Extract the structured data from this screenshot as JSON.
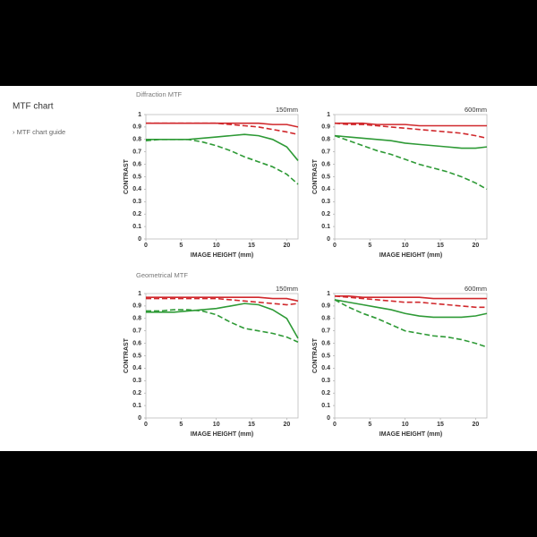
{
  "page": {
    "title": "MTF chart",
    "link": "› MTF chart guide",
    "sections": [
      "Diffraction MTF",
      "Geometrical MTF"
    ]
  },
  "chart_data": [
    {
      "type": "line",
      "title": "150mm",
      "xlabel": "IMAGE HEIGHT (mm)",
      "ylabel": "CONTRAST",
      "x": [
        0,
        2,
        4,
        6,
        8,
        10,
        12,
        14,
        16,
        18,
        20,
        21.6
      ],
      "xlim": [
        0,
        21.6
      ],
      "xticks": [
        0,
        5,
        10,
        15,
        20
      ],
      "ylim": [
        0,
        1
      ],
      "yticks": [
        0,
        0.1,
        0.2,
        0.3,
        0.4,
        0.5,
        0.6,
        0.7,
        0.8,
        0.9,
        1
      ],
      "grid": false,
      "series": [
        {
          "color": "#d0282c",
          "style": "solid",
          "values": [
            0.93,
            0.93,
            0.93,
            0.93,
            0.93,
            0.93,
            0.93,
            0.93,
            0.93,
            0.92,
            0.92,
            0.9
          ]
        },
        {
          "color": "#d0282c",
          "style": "dashed",
          "values": [
            0.93,
            0.93,
            0.93,
            0.93,
            0.93,
            0.93,
            0.92,
            0.91,
            0.9,
            0.88,
            0.86,
            0.84
          ]
        },
        {
          "color": "#2e9a36",
          "style": "solid",
          "values": [
            0.8,
            0.8,
            0.8,
            0.8,
            0.81,
            0.82,
            0.83,
            0.84,
            0.83,
            0.8,
            0.74,
            0.63
          ]
        },
        {
          "color": "#2e9a36",
          "style": "dashed",
          "values": [
            0.79,
            0.8,
            0.8,
            0.8,
            0.78,
            0.75,
            0.71,
            0.66,
            0.62,
            0.58,
            0.52,
            0.44
          ]
        }
      ]
    },
    {
      "type": "line",
      "title": "600mm",
      "xlabel": "IMAGE HEIGHT (mm)",
      "ylabel": "CONTRAST",
      "x": [
        0,
        2,
        4,
        6,
        8,
        10,
        12,
        14,
        16,
        18,
        20,
        21.6
      ],
      "xlim": [
        0,
        21.6
      ],
      "xticks": [
        0,
        5,
        10,
        15,
        20
      ],
      "ylim": [
        0,
        1
      ],
      "yticks": [
        0,
        0.1,
        0.2,
        0.3,
        0.4,
        0.5,
        0.6,
        0.7,
        0.8,
        0.9,
        1
      ],
      "grid": false,
      "series": [
        {
          "color": "#d0282c",
          "style": "solid",
          "values": [
            0.93,
            0.93,
            0.93,
            0.92,
            0.92,
            0.92,
            0.91,
            0.91,
            0.91,
            0.91,
            0.91,
            0.91
          ]
        },
        {
          "color": "#d0282c",
          "style": "dashed",
          "values": [
            0.93,
            0.92,
            0.92,
            0.91,
            0.9,
            0.89,
            0.88,
            0.87,
            0.86,
            0.85,
            0.83,
            0.81
          ]
        },
        {
          "color": "#2e9a36",
          "style": "solid",
          "values": [
            0.83,
            0.82,
            0.81,
            0.8,
            0.79,
            0.77,
            0.76,
            0.75,
            0.74,
            0.73,
            0.73,
            0.74
          ]
        },
        {
          "color": "#2e9a36",
          "style": "dashed",
          "values": [
            0.83,
            0.79,
            0.75,
            0.71,
            0.68,
            0.64,
            0.6,
            0.57,
            0.54,
            0.5,
            0.45,
            0.4
          ]
        }
      ]
    },
    {
      "type": "line",
      "title": "150mm",
      "xlabel": "IMAGE HEIGHT (mm)",
      "ylabel": "CONTRAST",
      "x": [
        0,
        2,
        4,
        6,
        8,
        10,
        12,
        14,
        16,
        18,
        20,
        21.6
      ],
      "xlim": [
        0,
        21.6
      ],
      "xticks": [
        0,
        5,
        10,
        15,
        20
      ],
      "ylim": [
        0,
        1
      ],
      "yticks": [
        0,
        0.1,
        0.2,
        0.3,
        0.4,
        0.5,
        0.6,
        0.7,
        0.8,
        0.9,
        1
      ],
      "grid": false,
      "series": [
        {
          "color": "#d0282c",
          "style": "solid",
          "values": [
            0.97,
            0.97,
            0.97,
            0.97,
            0.97,
            0.97,
            0.97,
            0.97,
            0.97,
            0.96,
            0.96,
            0.94
          ]
        },
        {
          "color": "#d0282c",
          "style": "dashed",
          "values": [
            0.96,
            0.96,
            0.96,
            0.96,
            0.96,
            0.96,
            0.95,
            0.94,
            0.93,
            0.92,
            0.91,
            0.92
          ]
        },
        {
          "color": "#2e9a36",
          "style": "solid",
          "values": [
            0.85,
            0.85,
            0.85,
            0.86,
            0.87,
            0.88,
            0.9,
            0.92,
            0.91,
            0.87,
            0.8,
            0.64
          ]
        },
        {
          "color": "#2e9a36",
          "style": "dashed",
          "values": [
            0.86,
            0.86,
            0.87,
            0.87,
            0.86,
            0.83,
            0.77,
            0.72,
            0.7,
            0.68,
            0.65,
            0.61
          ]
        }
      ]
    },
    {
      "type": "line",
      "title": "600mm",
      "xlabel": "IMAGE HEIGHT (mm)",
      "ylabel": "CONTRAST",
      "x": [
        0,
        2,
        4,
        6,
        8,
        10,
        12,
        14,
        16,
        18,
        20,
        21.6
      ],
      "xlim": [
        0,
        21.6
      ],
      "xticks": [
        0,
        5,
        10,
        15,
        20
      ],
      "ylim": [
        0,
        1
      ],
      "yticks": [
        0,
        0.1,
        0.2,
        0.3,
        0.4,
        0.5,
        0.6,
        0.7,
        0.8,
        0.9,
        1
      ],
      "grid": false,
      "series": [
        {
          "color": "#d0282c",
          "style": "solid",
          "values": [
            0.98,
            0.98,
            0.97,
            0.97,
            0.97,
            0.97,
            0.97,
            0.96,
            0.96,
            0.96,
            0.96,
            0.96
          ]
        },
        {
          "color": "#d0282c",
          "style": "dashed",
          "values": [
            0.98,
            0.97,
            0.96,
            0.95,
            0.94,
            0.93,
            0.93,
            0.92,
            0.91,
            0.9,
            0.89,
            0.89
          ]
        },
        {
          "color": "#2e9a36",
          "style": "solid",
          "values": [
            0.95,
            0.93,
            0.91,
            0.89,
            0.87,
            0.84,
            0.82,
            0.81,
            0.81,
            0.81,
            0.82,
            0.84
          ]
        },
        {
          "color": "#2e9a36",
          "style": "dashed",
          "values": [
            0.95,
            0.89,
            0.84,
            0.8,
            0.75,
            0.7,
            0.68,
            0.66,
            0.65,
            0.63,
            0.6,
            0.57
          ]
        }
      ]
    }
  ]
}
